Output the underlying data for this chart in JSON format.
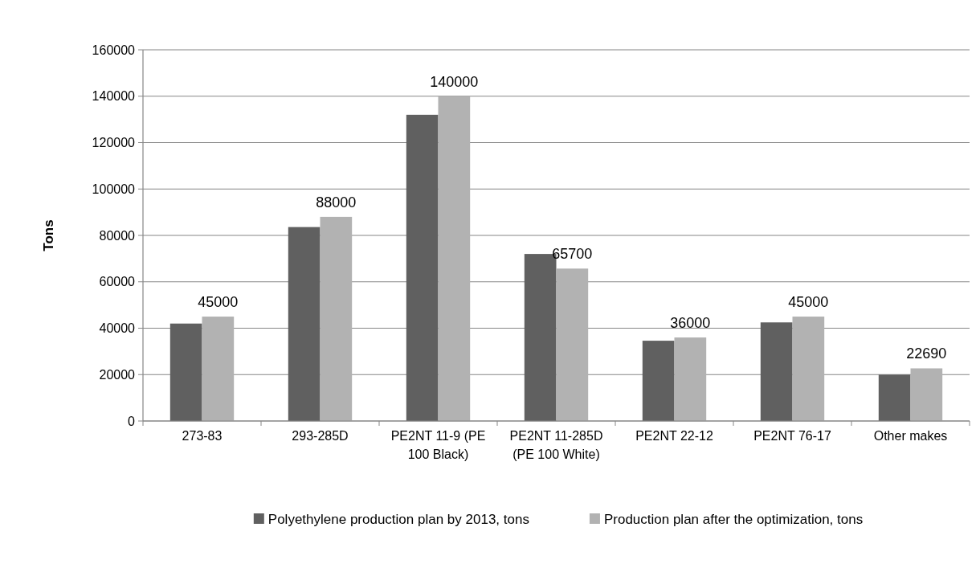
{
  "chart_data": {
    "type": "bar",
    "ylabel": "Tons",
    "categories": [
      "273-83",
      "293-285D",
      "PE2NT 11-9 (PE 100 Black)",
      "PE2NT 11-285D (PE 100 White)",
      "PE2NT 22-12",
      "PE2NT 76-17",
      "Other makes"
    ],
    "series": [
      {
        "name": "Polyethylene production plan by 2013, tons",
        "color": "#606060",
        "values": [
          42000,
          83600,
          132000,
          72000,
          34600,
          42500,
          20000
        ]
      },
      {
        "name": "Production plan after the optimization, tons",
        "color": "#b2b2b2",
        "values": [
          45000,
          88000,
          140000,
          65700,
          36000,
          45000,
          22690
        ],
        "value_labels": [
          "45000",
          "88000",
          "140000",
          "65700",
          "36000",
          "45000",
          "22690"
        ]
      }
    ],
    "ylim": [
      0,
      160000
    ],
    "yticks": [
      0,
      20000,
      40000,
      60000,
      80000,
      100000,
      120000,
      140000,
      160000
    ],
    "grid": "y",
    "legend": "bottom"
  }
}
